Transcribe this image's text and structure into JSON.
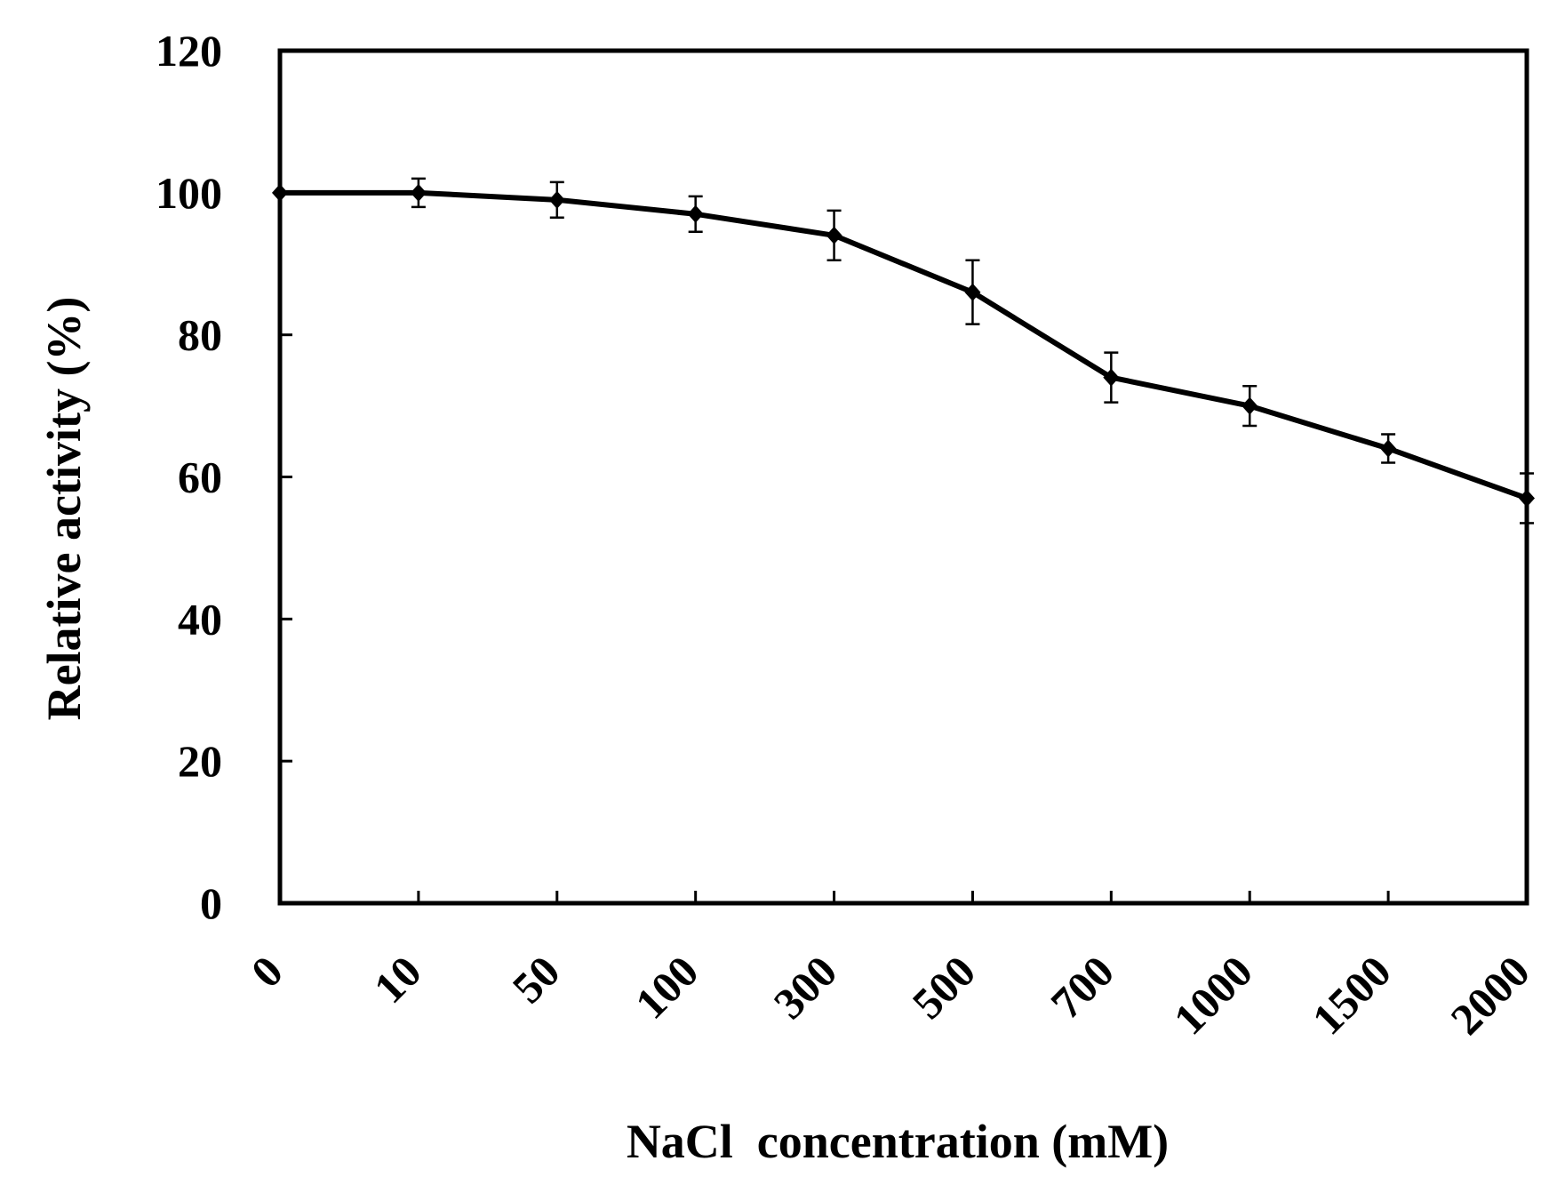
{
  "chart_data": {
    "type": "line",
    "title": "",
    "xlabel": "NaCl  concentration (mM)",
    "ylabel": "Relative activity (%)",
    "categories": [
      "0",
      "10",
      "50",
      "100",
      "300",
      "500",
      "700",
      "1000",
      "1500",
      "2000"
    ],
    "series": [
      {
        "name": "Relative activity",
        "values": [
          100,
          100,
          99,
          97,
          94,
          86,
          74,
          70,
          64,
          57
        ],
        "errors": [
          0,
          2,
          2.5,
          2.5,
          3.5,
          4.5,
          3.5,
          2.8,
          2,
          3.5
        ]
      }
    ],
    "ylim": [
      0,
      120
    ],
    "yticks": [
      0,
      20,
      40,
      60,
      80,
      100,
      120
    ],
    "grid": false,
    "legend": "none",
    "colors": {
      "line": "#000000",
      "axis": "#000000"
    }
  }
}
